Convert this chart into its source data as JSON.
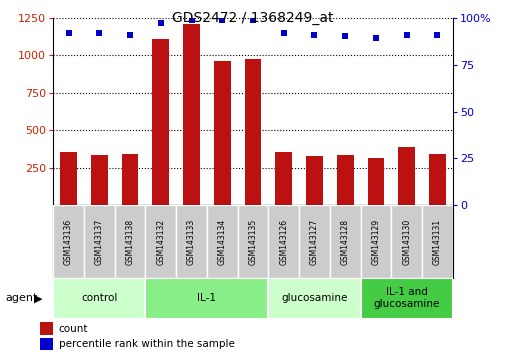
{
  "title": "GDS2472 / 1368249_at",
  "samples": [
    "GSM143136",
    "GSM143137",
    "GSM143138",
    "GSM143132",
    "GSM143133",
    "GSM143134",
    "GSM143135",
    "GSM143126",
    "GSM143127",
    "GSM143128",
    "GSM143129",
    "GSM143130",
    "GSM143131"
  ],
  "counts": [
    355,
    335,
    345,
    1110,
    1210,
    960,
    975,
    355,
    330,
    335,
    315,
    390,
    345
  ],
  "percentiles": [
    92,
    92,
    91,
    97,
    99,
    99,
    99,
    92,
    91,
    90,
    89,
    91,
    91
  ],
  "groups": [
    {
      "name": "control",
      "start": 0,
      "end": 3,
      "color": "#ccffcc"
    },
    {
      "name": "IL-1",
      "start": 3,
      "end": 7,
      "color": "#88ee88"
    },
    {
      "name": "glucosamine",
      "start": 7,
      "end": 10,
      "color": "#ccffcc"
    },
    {
      "name": "IL-1 and\nglucosamine",
      "start": 10,
      "end": 13,
      "color": "#44cc44"
    }
  ],
  "bar_color": "#bb1111",
  "dot_color": "#0000cc",
  "ylim_left": [
    0,
    1250
  ],
  "ylim_right": [
    0,
    100
  ],
  "yticks_left": [
    250,
    500,
    750,
    1000,
    1250
  ],
  "yticks_right": [
    0,
    25,
    50,
    75,
    100
  ],
  "bg_color": "#ffffff",
  "sample_bg": "#cccccc",
  "sample_border": "#888888"
}
